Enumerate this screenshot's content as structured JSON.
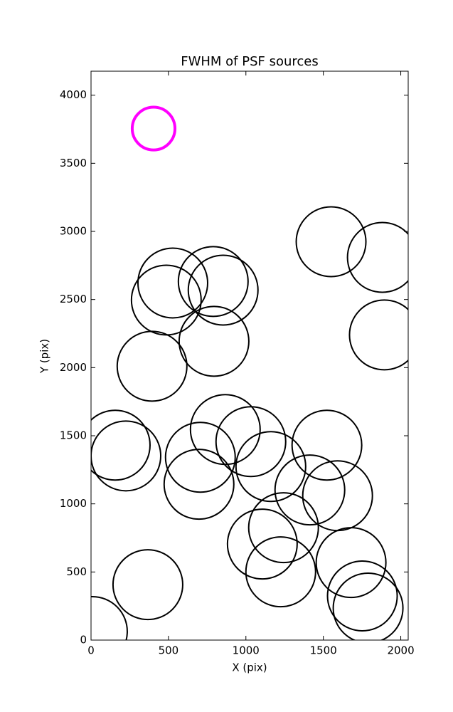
{
  "chart_data": {
    "type": "scatter",
    "title": "FWHM of PSF sources",
    "x_label": "X (pix)",
    "y_label": "Y (pix)",
    "xlim": [
      0,
      2048
    ],
    "ylim": [
      0,
      4176
    ],
    "xticks": [
      0,
      500,
      1000,
      1500,
      2000
    ],
    "yticks": [
      0,
      500,
      1000,
      1500,
      2000,
      2500,
      3000,
      3500,
      4000
    ],
    "series": [
      {
        "color": "#000000",
        "x": [
          9,
          367,
          156,
          225,
          394,
          486,
          528,
          789,
          853,
          794,
          706,
          697,
          867,
          1032,
          1161,
          1550,
          1881,
          1894,
          1523,
          1413,
          1592,
          1243,
          1106,
          1225,
          1679,
          1752,
          1789
        ],
        "y": [
          63,
          407,
          1431,
          1352,
          2010,
          2496,
          2621,
          2632,
          2569,
          2193,
          1342,
          1144,
          1546,
          1457,
          1274,
          2924,
          2809,
          2240,
          1431,
          1102,
          1060,
          825,
          705,
          501,
          569,
          324,
          235
        ],
        "sizes": [
          225,
          225,
          225,
          225,
          225,
          225,
          225,
          225,
          225,
          225,
          225,
          225,
          225,
          225,
          225,
          225,
          225,
          225,
          225,
          225,
          225,
          225,
          225,
          225,
          225,
          225,
          225
        ]
      },
      {
        "color": "#ff00ff",
        "x": [
          404
        ],
        "y": [
          3755
        ],
        "sizes": [
          138
        ]
      }
    ]
  }
}
